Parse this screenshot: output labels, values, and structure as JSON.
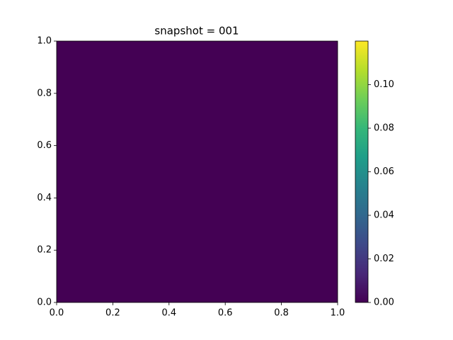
{
  "chart_data": {
    "type": "heatmap",
    "title": "snapshot = 001",
    "values": [
      [
        0
      ]
    ],
    "xlim": [
      0,
      1
    ],
    "ylim": [
      0,
      1
    ],
    "xticks": [
      {
        "value": 0,
        "label": "0.0"
      },
      {
        "value": 0.2,
        "label": "0.2"
      },
      {
        "value": 0.4,
        "label": "0.4"
      },
      {
        "value": 0.6,
        "label": "0.6"
      },
      {
        "value": 0.8,
        "label": "0.8"
      },
      {
        "value": 1,
        "label": "1.0"
      }
    ],
    "yticks": [
      {
        "value": 0,
        "label": "0.0"
      },
      {
        "value": 0.2,
        "label": "0.2"
      },
      {
        "value": 0.4,
        "label": "0.4"
      },
      {
        "value": 0.6,
        "label": "0.6"
      },
      {
        "value": 0.8,
        "label": "0.8"
      },
      {
        "value": 1,
        "label": "1.0"
      }
    ],
    "clim": [
      0,
      0.12
    ],
    "cticks": [
      {
        "value": 0,
        "label": "0.00"
      },
      {
        "value": 0.02,
        "label": "0.02"
      },
      {
        "value": 0.04,
        "label": "0.04"
      },
      {
        "value": 0.06,
        "label": "0.06"
      },
      {
        "value": 0.08,
        "label": "0.08"
      },
      {
        "value": 0.1,
        "label": "0.10"
      }
    ],
    "colormap": [
      "#440154",
      "#482878",
      "#3e4989",
      "#31688e",
      "#26828e",
      "#1f9e89",
      "#35b779",
      "#6ece58",
      "#b5de2b",
      "#fde725"
    ]
  }
}
